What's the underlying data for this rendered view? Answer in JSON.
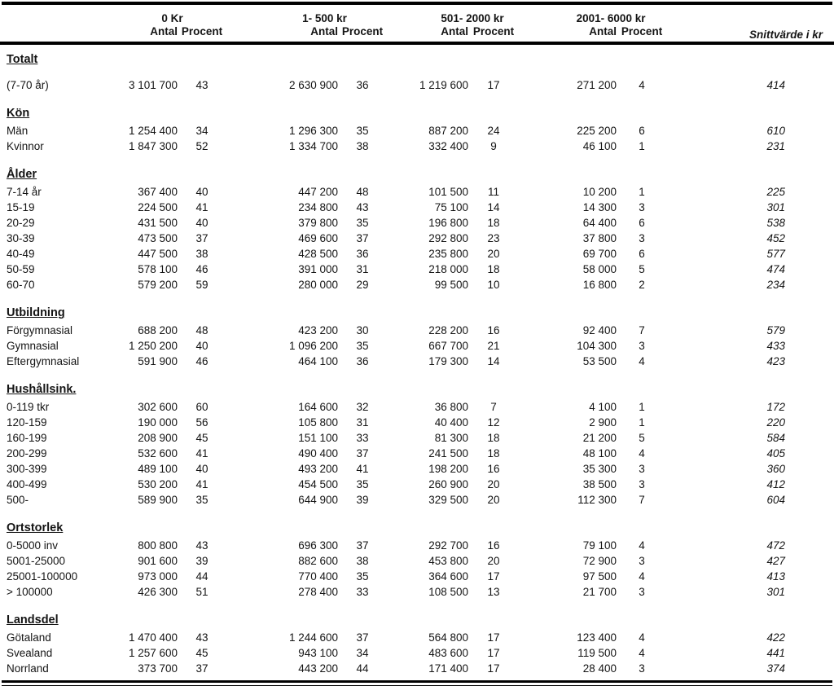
{
  "header": {
    "groups": [
      "0 Kr",
      "1- 500 kr",
      "501- 2000 kr",
      "2001- 6000 kr"
    ],
    "antal": "Antal",
    "procent": "Procent",
    "snitt": "Snittvärde i kr"
  },
  "sections": [
    {
      "title": "Totalt",
      "rows": [
        {
          "label": "(7-70 år)",
          "spacer": true,
          "cells": [
            "3 101 700",
            "43",
            "2 630 900",
            "36",
            "1 219 600",
            "17",
            "271 200",
            "4",
            "414"
          ]
        }
      ]
    },
    {
      "title": "Kön",
      "rows": [
        {
          "label": "Män",
          "cells": [
            "1 254 400",
            "34",
            "1 296 300",
            "35",
            "887 200",
            "24",
            "225 200",
            "6",
            "610"
          ]
        },
        {
          "label": "Kvinnor",
          "cells": [
            "1 847 300",
            "52",
            "1 334 700",
            "38",
            "332 400",
            "9",
            "46 100",
            "1",
            "231"
          ]
        }
      ]
    },
    {
      "title": "Ålder",
      "rows": [
        {
          "label": "7-14 år",
          "cells": [
            "367 400",
            "40",
            "447 200",
            "48",
            "101 500",
            "11",
            "10 200",
            "1",
            "225"
          ]
        },
        {
          "label": "15-19",
          "cells": [
            "224 500",
            "41",
            "234 800",
            "43",
            "75 100",
            "14",
            "14 300",
            "3",
            "301"
          ]
        },
        {
          "label": "20-29",
          "cells": [
            "431 500",
            "40",
            "379 800",
            "35",
            "196 800",
            "18",
            "64 400",
            "6",
            "538"
          ]
        },
        {
          "label": "30-39",
          "cells": [
            "473 500",
            "37",
            "469 600",
            "37",
            "292 800",
            "23",
            "37 800",
            "3",
            "452"
          ]
        },
        {
          "label": "40-49",
          "cells": [
            "447 500",
            "38",
            "428 500",
            "36",
            "235 800",
            "20",
            "69 700",
            "6",
            "577"
          ]
        },
        {
          "label": "50-59",
          "cells": [
            "578 100",
            "46",
            "391 000",
            "31",
            "218 000",
            "18",
            "58 000",
            "5",
            "474"
          ]
        },
        {
          "label": "60-70",
          "cells": [
            "579 200",
            "59",
            "280 000",
            "29",
            "99 500",
            "10",
            "16 800",
            "2",
            "234"
          ]
        }
      ]
    },
    {
      "title": "Utbildning",
      "rows": [
        {
          "label": "Förgymnasial",
          "cells": [
            "688 200",
            "48",
            "423 200",
            "30",
            "228 200",
            "16",
            "92 400",
            "7",
            "579"
          ]
        },
        {
          "label": "Gymnasial",
          "cells": [
            "1 250 200",
            "40",
            "1 096 200",
            "35",
            "667 700",
            "21",
            "104 300",
            "3",
            "433"
          ]
        },
        {
          "label": "Eftergymnasial",
          "cells": [
            "591 900",
            "46",
            "464 100",
            "36",
            "179 300",
            "14",
            "53 500",
            "4",
            "423"
          ]
        }
      ]
    },
    {
      "title": "Hushållsink.",
      "rows": [
        {
          "label": "0-119 tkr",
          "cells": [
            "302 600",
            "60",
            "164 600",
            "32",
            "36 800",
            "7",
            "4 100",
            "1",
            "172"
          ]
        },
        {
          "label": "120-159",
          "cells": [
            "190 000",
            "56",
            "105 800",
            "31",
            "40 400",
            "12",
            "2 900",
            "1",
            "220"
          ]
        },
        {
          "label": "160-199",
          "cells": [
            "208 900",
            "45",
            "151 100",
            "33",
            "81 300",
            "18",
            "21 200",
            "5",
            "584"
          ]
        },
        {
          "label": "200-299",
          "cells": [
            "532 600",
            "41",
            "490 400",
            "37",
            "241 500",
            "18",
            "48 100",
            "4",
            "405"
          ]
        },
        {
          "label": "300-399",
          "cells": [
            "489 100",
            "40",
            "493 200",
            "41",
            "198 200",
            "16",
            "35 300",
            "3",
            "360"
          ]
        },
        {
          "label": "400-499",
          "cells": [
            "530 200",
            "41",
            "454 500",
            "35",
            "260 900",
            "20",
            "38 500",
            "3",
            "412"
          ]
        },
        {
          "label": "500-",
          "cells": [
            "589 900",
            "35",
            "644 900",
            "39",
            "329 500",
            "20",
            "112 300",
            "7",
            "604"
          ]
        }
      ]
    },
    {
      "title": "Ortstorlek",
      "rows": [
        {
          "label": "0-5000 inv",
          "cells": [
            "800 800",
            "43",
            "696 300",
            "37",
            "292 700",
            "16",
            "79 100",
            "4",
            "472"
          ]
        },
        {
          "label": "5001-25000",
          "cells": [
            "901 600",
            "39",
            "882 600",
            "38",
            "453 800",
            "20",
            "72 900",
            "3",
            "427"
          ]
        },
        {
          "label": "25001-100000",
          "cells": [
            "973 000",
            "44",
            "770 400",
            "35",
            "364 600",
            "17",
            "97 500",
            "4",
            "413"
          ]
        },
        {
          "label": "> 100000",
          "cells": [
            "426 300",
            "51",
            "278 400",
            "33",
            "108 500",
            "13",
            "21 700",
            "3",
            "301"
          ]
        }
      ]
    },
    {
      "title": "Landsdel",
      "rows": [
        {
          "label": "Götaland",
          "cells": [
            "1 470 400",
            "43",
            "1 244 600",
            "37",
            "564 800",
            "17",
            "123 400",
            "4",
            "422"
          ]
        },
        {
          "label": "Svealand",
          "cells": [
            "1 257 600",
            "45",
            "943 100",
            "34",
            "483 600",
            "17",
            "119 500",
            "4",
            "441"
          ]
        },
        {
          "label": "Norrland",
          "cells": [
            "373 700",
            "37",
            "443 200",
            "44",
            "171 400",
            "17",
            "28 400",
            "3",
            "374"
          ]
        }
      ]
    }
  ]
}
